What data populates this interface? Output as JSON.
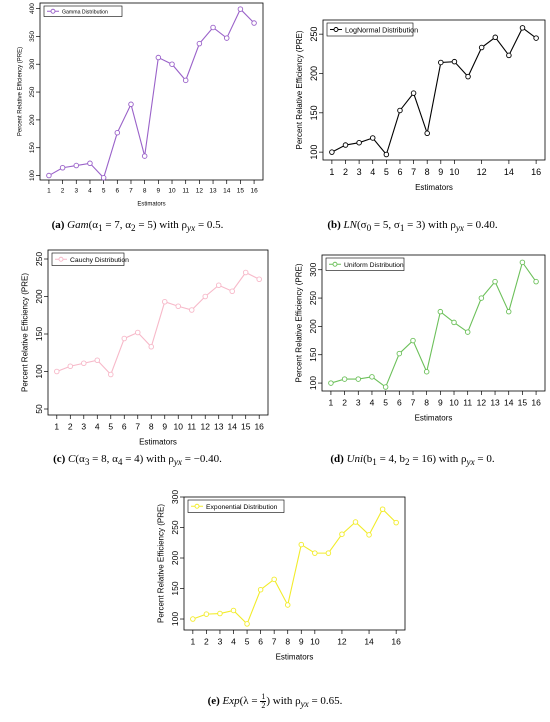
{
  "captions": [
    {
      "label": "(a)",
      "dist": "Gam",
      "params": "(α",
      "s1": "1",
      "v1": " = 7, α",
      "s2": "2",
      "v2": " = 5)",
      "rest": " with ρ",
      "sub": "yx",
      "val": " = 0.5."
    },
    {
      "label": "(b)",
      "dist": "LN",
      "params": "(σ",
      "s1": "0",
      "v1": " = 5, σ",
      "s2": "1",
      "v2": " = 3)",
      "rest": " with ρ",
      "sub": "yx",
      "val": " = 0.40."
    },
    {
      "label": "(c)",
      "dist": "C",
      "params": "(α",
      "s1": "3",
      "v1": " = 8, α",
      "s2": "4",
      "v2": " = 4)",
      "rest": " with ρ",
      "sub": "yx",
      "val": " = −0.40."
    },
    {
      "label": "(d)",
      "dist": "Uni",
      "params": "(b",
      "s1": "1",
      "v1": " = 4, b",
      "s2": "2",
      "v2": " = 16)",
      "rest": " with ρ",
      "sub": "yx",
      "val": " = 0."
    },
    {
      "label": "(e)",
      "dist": "Exp",
      "params": "(λ = ",
      "frac_num": "1",
      "frac_den": "2",
      "close": ")",
      "rest": " with ρ",
      "sub": "yx",
      "val": " = 0.65."
    }
  ],
  "chart_data": [
    {
      "type": "line",
      "legend": "Gamma Distribution",
      "legend_position": "top-left",
      "color": "#9a62c9",
      "xlabel": "Estimators",
      "ylabel": "Percent Relative Efficiency (PRE)",
      "x": [
        1,
        2,
        3,
        4,
        5,
        6,
        7,
        8,
        9,
        10,
        11,
        12,
        13,
        14,
        15,
        16
      ],
      "x_ticks": [
        "1",
        "2",
        "3",
        "4",
        "5",
        "6",
        "7",
        "8",
        "9",
        "10",
        "11",
        "12",
        "13",
        "14",
        "15",
        "16"
      ],
      "y_ticks": [
        100,
        150,
        200,
        250,
        300,
        350,
        400
      ],
      "ylim": [
        92,
        410
      ],
      "values": [
        100,
        114,
        118,
        122,
        96,
        177,
        228,
        135,
        312,
        300,
        271,
        337,
        366,
        347,
        399,
        374
      ]
    },
    {
      "type": "line",
      "legend": "LogNormal Distribution",
      "legend_position": "top-left",
      "color": "#000000",
      "xlabel": "Estimators",
      "ylabel": "Percent Relative Efficiency (PRE)",
      "x": [
        1,
        2,
        3,
        4,
        5,
        6,
        7,
        8,
        9,
        10,
        11,
        12,
        13,
        14,
        15,
        16
      ],
      "x_ticks": [
        "1",
        "2",
        "3",
        "4",
        "5",
        "6",
        "7",
        "8",
        "9",
        "10",
        "12",
        "14",
        "16"
      ],
      "x_tick_positions": [
        1,
        2,
        3,
        4,
        5,
        6,
        7,
        8,
        9,
        10,
        12,
        14,
        16
      ],
      "y_ticks": [
        100,
        150,
        200,
        250
      ],
      "ylim": [
        90,
        268
      ],
      "values": [
        100,
        109,
        112,
        118,
        97,
        153,
        175,
        124,
        214,
        215,
        196,
        233,
        246,
        223,
        258,
        245
      ]
    },
    {
      "type": "line",
      "legend": "Cauchy Distribution",
      "legend_position": "top-left",
      "color": "#f7b9c9",
      "xlabel": "Estimators",
      "ylabel": "Percent Relative Efficiency (PRE)",
      "x": [
        1,
        2,
        3,
        4,
        5,
        6,
        7,
        8,
        9,
        10,
        11,
        12,
        13,
        14,
        15,
        16
      ],
      "x_ticks": [
        "1",
        "2",
        "3",
        "4",
        "5",
        "6",
        "7",
        "8",
        "9",
        "10",
        "11",
        "12",
        "13",
        "14",
        "15",
        "16"
      ],
      "y_ticks": [
        50,
        100,
        150,
        200,
        250
      ],
      "ylim": [
        42,
        262
      ],
      "values": [
        100,
        107,
        111,
        115,
        96,
        144,
        152,
        133,
        193,
        187,
        182,
        200,
        215,
        207,
        232,
        223
      ]
    },
    {
      "type": "line",
      "legend": "Uniform Distribution",
      "legend_position": "top-left",
      "color": "#6cc05a",
      "xlabel": "Estimators",
      "ylabel": "Percent Relative Efficiency (PRE)",
      "x": [
        1,
        2,
        3,
        4,
        5,
        6,
        7,
        8,
        9,
        10,
        11,
        12,
        13,
        14,
        15,
        16
      ],
      "x_ticks": [
        "1",
        "2",
        "3",
        "4",
        "5",
        "6",
        "7",
        "8",
        "9",
        "10",
        "11",
        "12",
        "13",
        "14",
        "15",
        "16"
      ],
      "y_ticks": [
        100,
        150,
        200,
        250,
        300
      ],
      "ylim": [
        86,
        326
      ],
      "values": [
        100,
        107,
        107,
        111,
        93,
        152,
        175,
        120,
        226,
        207,
        190,
        250,
        279,
        226,
        313,
        279
      ]
    },
    {
      "type": "line",
      "legend": "Exponential Distribution",
      "legend_position": "top-left",
      "color": "#f2ec2a",
      "xlabel": "Estimators",
      "ylabel": "Percent Relative Efficiency (PRE)",
      "x": [
        1,
        2,
        3,
        4,
        5,
        6,
        7,
        8,
        9,
        10,
        11,
        12,
        13,
        14,
        15,
        16
      ],
      "x_ticks": [
        "1",
        "2",
        "3",
        "4",
        "5",
        "6",
        "7",
        "8",
        "9",
        "10",
        "12",
        "14",
        "16"
      ],
      "x_tick_positions": [
        1,
        2,
        3,
        4,
        5,
        6,
        7,
        8,
        9,
        10,
        12,
        14,
        16
      ],
      "y_ticks": [
        100,
        150,
        200,
        250,
        300
      ],
      "ylim": [
        82,
        300
      ],
      "values": [
        100,
        108,
        109,
        114,
        92,
        148,
        165,
        123,
        222,
        208,
        208,
        239,
        259,
        238,
        280,
        258
      ]
    }
  ]
}
